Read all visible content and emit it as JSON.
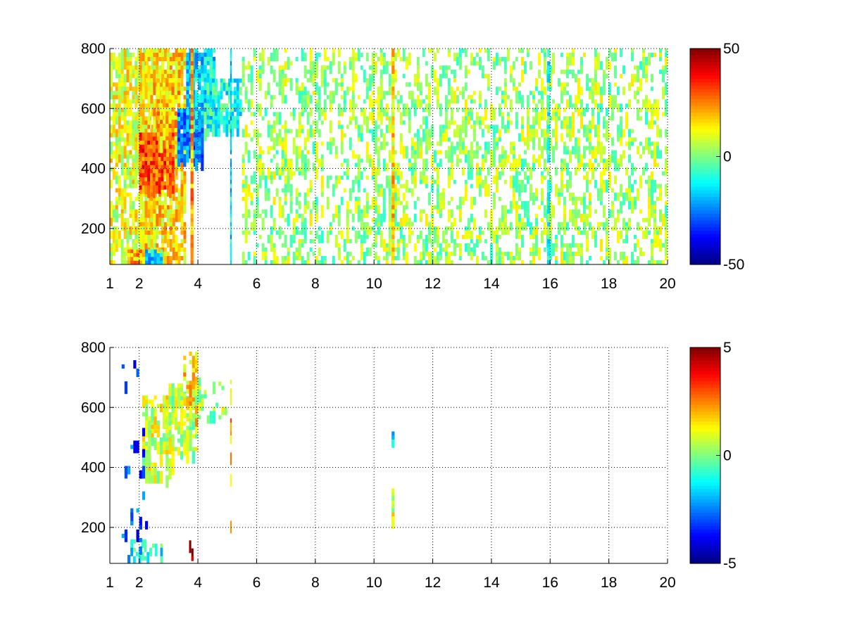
{
  "chart_data": [
    {
      "type": "heatmap",
      "title": "",
      "xlabel": "",
      "ylabel": "",
      "xlim": [
        1,
        20
      ],
      "ylim": [
        80,
        800
      ],
      "x_ticks": [
        1,
        2,
        4,
        6,
        8,
        10,
        12,
        14,
        16,
        18,
        20
      ],
      "x_tick_labels": [
        "1",
        "2",
        "4",
        "6",
        "8",
        "10",
        "12",
        "14",
        "16",
        "18",
        "20"
      ],
      "y_ticks": [
        200,
        400,
        600,
        800
      ],
      "y_tick_labels": [
        "200",
        "400",
        "600",
        "800"
      ],
      "grid": true,
      "colormap": "jet",
      "clim": [
        -50,
        50
      ],
      "colorbar_ticks": [
        -50,
        0,
        50
      ],
      "colorbar_tick_labels": [
        "-50",
        "0",
        "50"
      ],
      "features": [
        {
          "x": [
            1.0,
            2.6
          ],
          "y": [
            80,
            800
          ],
          "value": 10,
          "density": 0.55
        },
        {
          "x": [
            2.0,
            3.6
          ],
          "y": [
            80,
            800
          ],
          "value": 15,
          "density": 0.65
        },
        {
          "x": [
            2.0,
            3.2
          ],
          "y": [
            330,
            520
          ],
          "value": 30,
          "density": 0.9
        },
        {
          "x": [
            2.6,
            3.4
          ],
          "y": [
            480,
            700
          ],
          "value": 18,
          "density": 0.8
        },
        {
          "x": [
            3.3,
            4.2
          ],
          "y": [
            420,
            600
          ],
          "value": -25,
          "density": 0.9
        },
        {
          "x": [
            3.6,
            4.6
          ],
          "y": [
            550,
            800
          ],
          "value": -15,
          "density": 0.8
        },
        {
          "x": [
            4.2,
            5.5
          ],
          "y": [
            520,
            700
          ],
          "value": -10,
          "density": 0.6
        },
        {
          "x": [
            1.6,
            2.4
          ],
          "y": [
            80,
            130
          ],
          "value": 20,
          "density": 0.9
        },
        {
          "x": [
            2.2,
            2.8
          ],
          "y": [
            80,
            130
          ],
          "value": -15,
          "density": 0.9
        },
        {
          "x": [
            5.5,
            20.0
          ],
          "y": [
            80,
            800
          ],
          "value": 3,
          "density": 0.28
        },
        {
          "x": [
            3.75,
            3.85
          ],
          "y": [
            80,
            800
          ],
          "value": 22,
          "density": 0.9
        },
        {
          "x": [
            5.1,
            5.15
          ],
          "y": [
            80,
            800
          ],
          "value": -15,
          "density": 0.9
        },
        {
          "x": [
            10.6,
            10.7
          ],
          "y": [
            80,
            800
          ],
          "value": 15,
          "density": 1.0
        },
        {
          "x": [
            15.9,
            16.0
          ],
          "y": [
            80,
            800
          ],
          "value": -8,
          "density": 0.7
        }
      ]
    },
    {
      "type": "heatmap",
      "title": "",
      "xlabel": "",
      "ylabel": "",
      "xlim": [
        1,
        20
      ],
      "ylim": [
        80,
        800
      ],
      "x_ticks": [
        1,
        2,
        4,
        6,
        8,
        10,
        12,
        14,
        16,
        18,
        20
      ],
      "x_tick_labels": [
        "1",
        "2",
        "4",
        "6",
        "8",
        "10",
        "12",
        "14",
        "16",
        "18",
        "20"
      ],
      "y_ticks": [
        200,
        400,
        600,
        800
      ],
      "y_tick_labels": [
        "200",
        "400",
        "600",
        "800"
      ],
      "grid": true,
      "colormap": "jet",
      "clim": [
        -5,
        5
      ],
      "colorbar_ticks": [
        -5,
        0,
        5
      ],
      "colorbar_tick_labels": [
        "-5",
        "0",
        "5"
      ],
      "features": [
        {
          "x": [
            2.1,
            3.2
          ],
          "y": [
            360,
            640
          ],
          "value": 0.8,
          "density": 0.45
        },
        {
          "x": [
            3.0,
            4.0
          ],
          "y": [
            440,
            680
          ],
          "value": 0.5,
          "density": 0.55
        },
        {
          "x": [
            3.5,
            4.0
          ],
          "y": [
            550,
            800
          ],
          "value": 1.5,
          "density": 0.45
        },
        {
          "x": [
            4.0,
            5.0
          ],
          "y": [
            560,
            700
          ],
          "value": 0.3,
          "density": 0.25
        },
        {
          "x": [
            1.7,
            2.9
          ],
          "y": [
            90,
            160
          ],
          "value": -1.0,
          "density": 0.3
        },
        {
          "x": [
            5.1,
            5.15
          ],
          "y": [
            80,
            720
          ],
          "value": 2.0,
          "density": 0.3
        },
        {
          "x": [
            10.6,
            10.7
          ],
          "y": [
            210,
            330
          ],
          "value": 0.8,
          "density": 1.0
        },
        {
          "x": [
            10.6,
            10.7
          ],
          "y": [
            480,
            520
          ],
          "value": -2.0,
          "density": 1.0
        },
        {
          "x": [
            1.4,
            2.3
          ],
          "y": [
            80,
            800
          ],
          "value": -3.0,
          "density": 0.06
        },
        {
          "x": [
            3.7,
            3.85
          ],
          "y": [
            90,
            170
          ],
          "value": 4.0,
          "density": 0.5
        }
      ]
    }
  ]
}
